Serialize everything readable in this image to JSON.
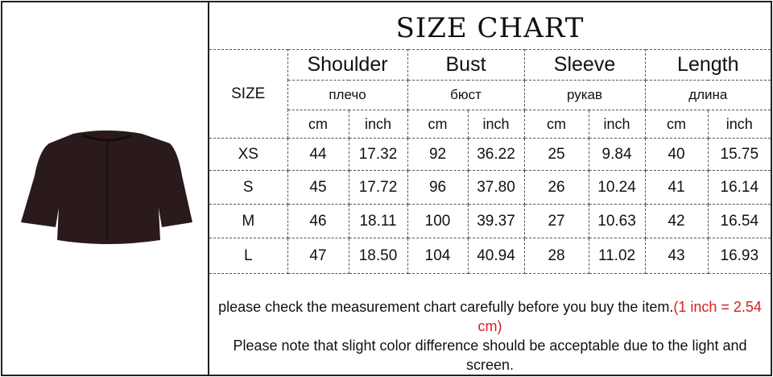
{
  "title": "SIZE CHART",
  "size_header": "SIZE",
  "measures": [
    {
      "en": "Shoulder",
      "ru": "плечо"
    },
    {
      "en": "Bust",
      "ru": "бюст"
    },
    {
      "en": "Sleeve",
      "ru": "рукав"
    },
    {
      "en": "Length",
      "ru": "длина"
    }
  ],
  "units": {
    "cm": "cm",
    "inch": "inch"
  },
  "rows": [
    {
      "size": "XS",
      "values": [
        "44",
        "17.32",
        "92",
        "36.22",
        "25",
        "9.84",
        "40",
        "15.75"
      ]
    },
    {
      "size": "S",
      "values": [
        "45",
        "17.72",
        "96",
        "37.80",
        "26",
        "10.24",
        "41",
        "16.14"
      ]
    },
    {
      "size": "M",
      "values": [
        "46",
        "18.11",
        "100",
        "39.37",
        "27",
        "10.63",
        "42",
        "16.54"
      ]
    },
    {
      "size": "L",
      "values": [
        "47",
        "18.50",
        "104",
        "40.94",
        "28",
        "11.02",
        "43",
        "16.93"
      ]
    }
  ],
  "notes": {
    "line1": "please check the measurement chart carefully before you buy the item.",
    "line1_red": "(1 inch = 2.54 cm)",
    "line2": "Please note that slight color difference should be acceptable due to the light and screen."
  },
  "colors": {
    "jacket": "#2a1a1c",
    "note_red": "#d21f1f"
  }
}
